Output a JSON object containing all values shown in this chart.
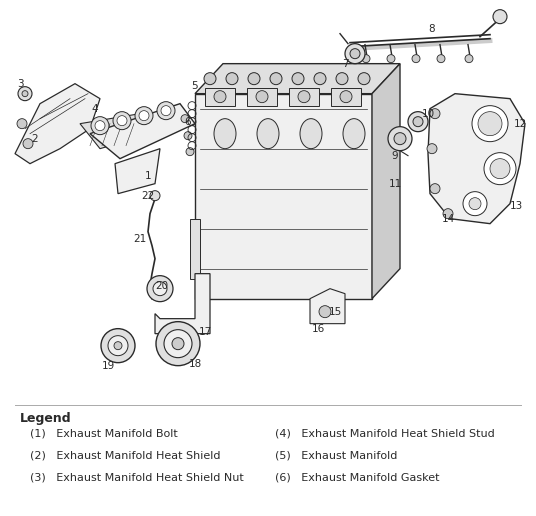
{
  "background_color": "#ffffff",
  "legend_title": "Legend",
  "legend_items_left": [
    "(1)   Exhaust Manifold Bolt",
    "(2)   Exhaust Manifold Heat Shield",
    "(3)   Exhaust Manifold Heat Shield Nut"
  ],
  "legend_items_right": [
    "(4)   Exhaust Manifold Heat Shield Stud",
    "(5)   Exhaust Manifold",
    "(6)   Exhaust Manifold Gasket"
  ],
  "fig_width": 5.36,
  "fig_height": 5.16,
  "dpi": 100,
  "line_color": "#2a2a2a",
  "fill_light": "#f0f0f0",
  "fill_mid": "#e0e0e0",
  "fill_dark": "#cccccc",
  "legend_title_fontsize": 9,
  "legend_text_fontsize": 8
}
